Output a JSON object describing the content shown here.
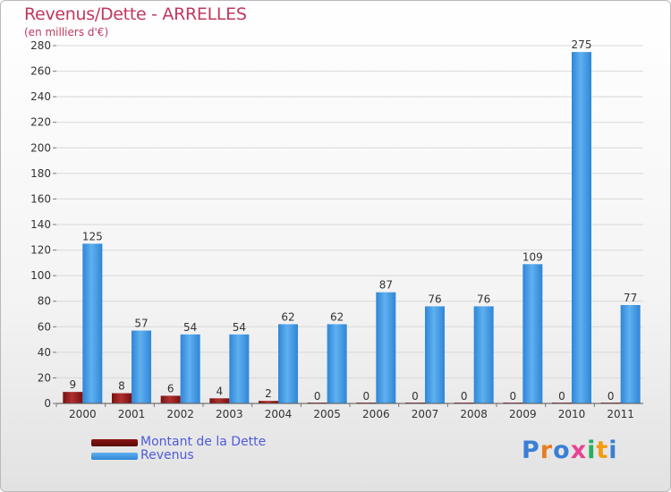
{
  "title": "Revenus/Dette - ARRELLES",
  "subtitle": "(en milliers d'€)",
  "legend": {
    "debt_label": "Montant de la Dette",
    "revenue_label": "Revenus"
  },
  "logo": {
    "text": "Proxiti",
    "letters": [
      "P",
      "r",
      "o",
      "x",
      "i",
      "t",
      "i"
    ]
  },
  "colors": {
    "title": "#c0385e",
    "debt": "#7a1010",
    "debt_light": "#b03030",
    "revenue": "#2f86d6",
    "revenue_light": "#5fb0f0",
    "legend_text": "#4e5bd8",
    "logo": [
      "#3a7fd5",
      "#e67e22",
      "#3a7fd5",
      "#e84393",
      "#27ae60",
      "#f39c12",
      "#3a7fd5"
    ]
  },
  "chart_data": {
    "type": "bar",
    "title": "Revenus/Dette - ARRELLES",
    "subtitle": "(en milliers d'€)",
    "categories": [
      "2000",
      "2001",
      "2002",
      "2003",
      "2004",
      "2005",
      "2006",
      "2007",
      "2008",
      "2009",
      "2010",
      "2011"
    ],
    "series": [
      {
        "name": "Montant de la Dette",
        "values": [
          9,
          8,
          6,
          4,
          2,
          0,
          0,
          0,
          0,
          0,
          0,
          0
        ]
      },
      {
        "name": "Revenus",
        "values": [
          125,
          57,
          54,
          54,
          62,
          62,
          87,
          76,
          76,
          109,
          275,
          77
        ]
      }
    ],
    "ylim": [
      0,
      280
    ],
    "yticks": [
      0,
      20,
      40,
      60,
      80,
      100,
      120,
      140,
      160,
      180,
      200,
      220,
      240,
      260,
      280
    ],
    "grid": true,
    "legend_position": "bottom-left"
  }
}
